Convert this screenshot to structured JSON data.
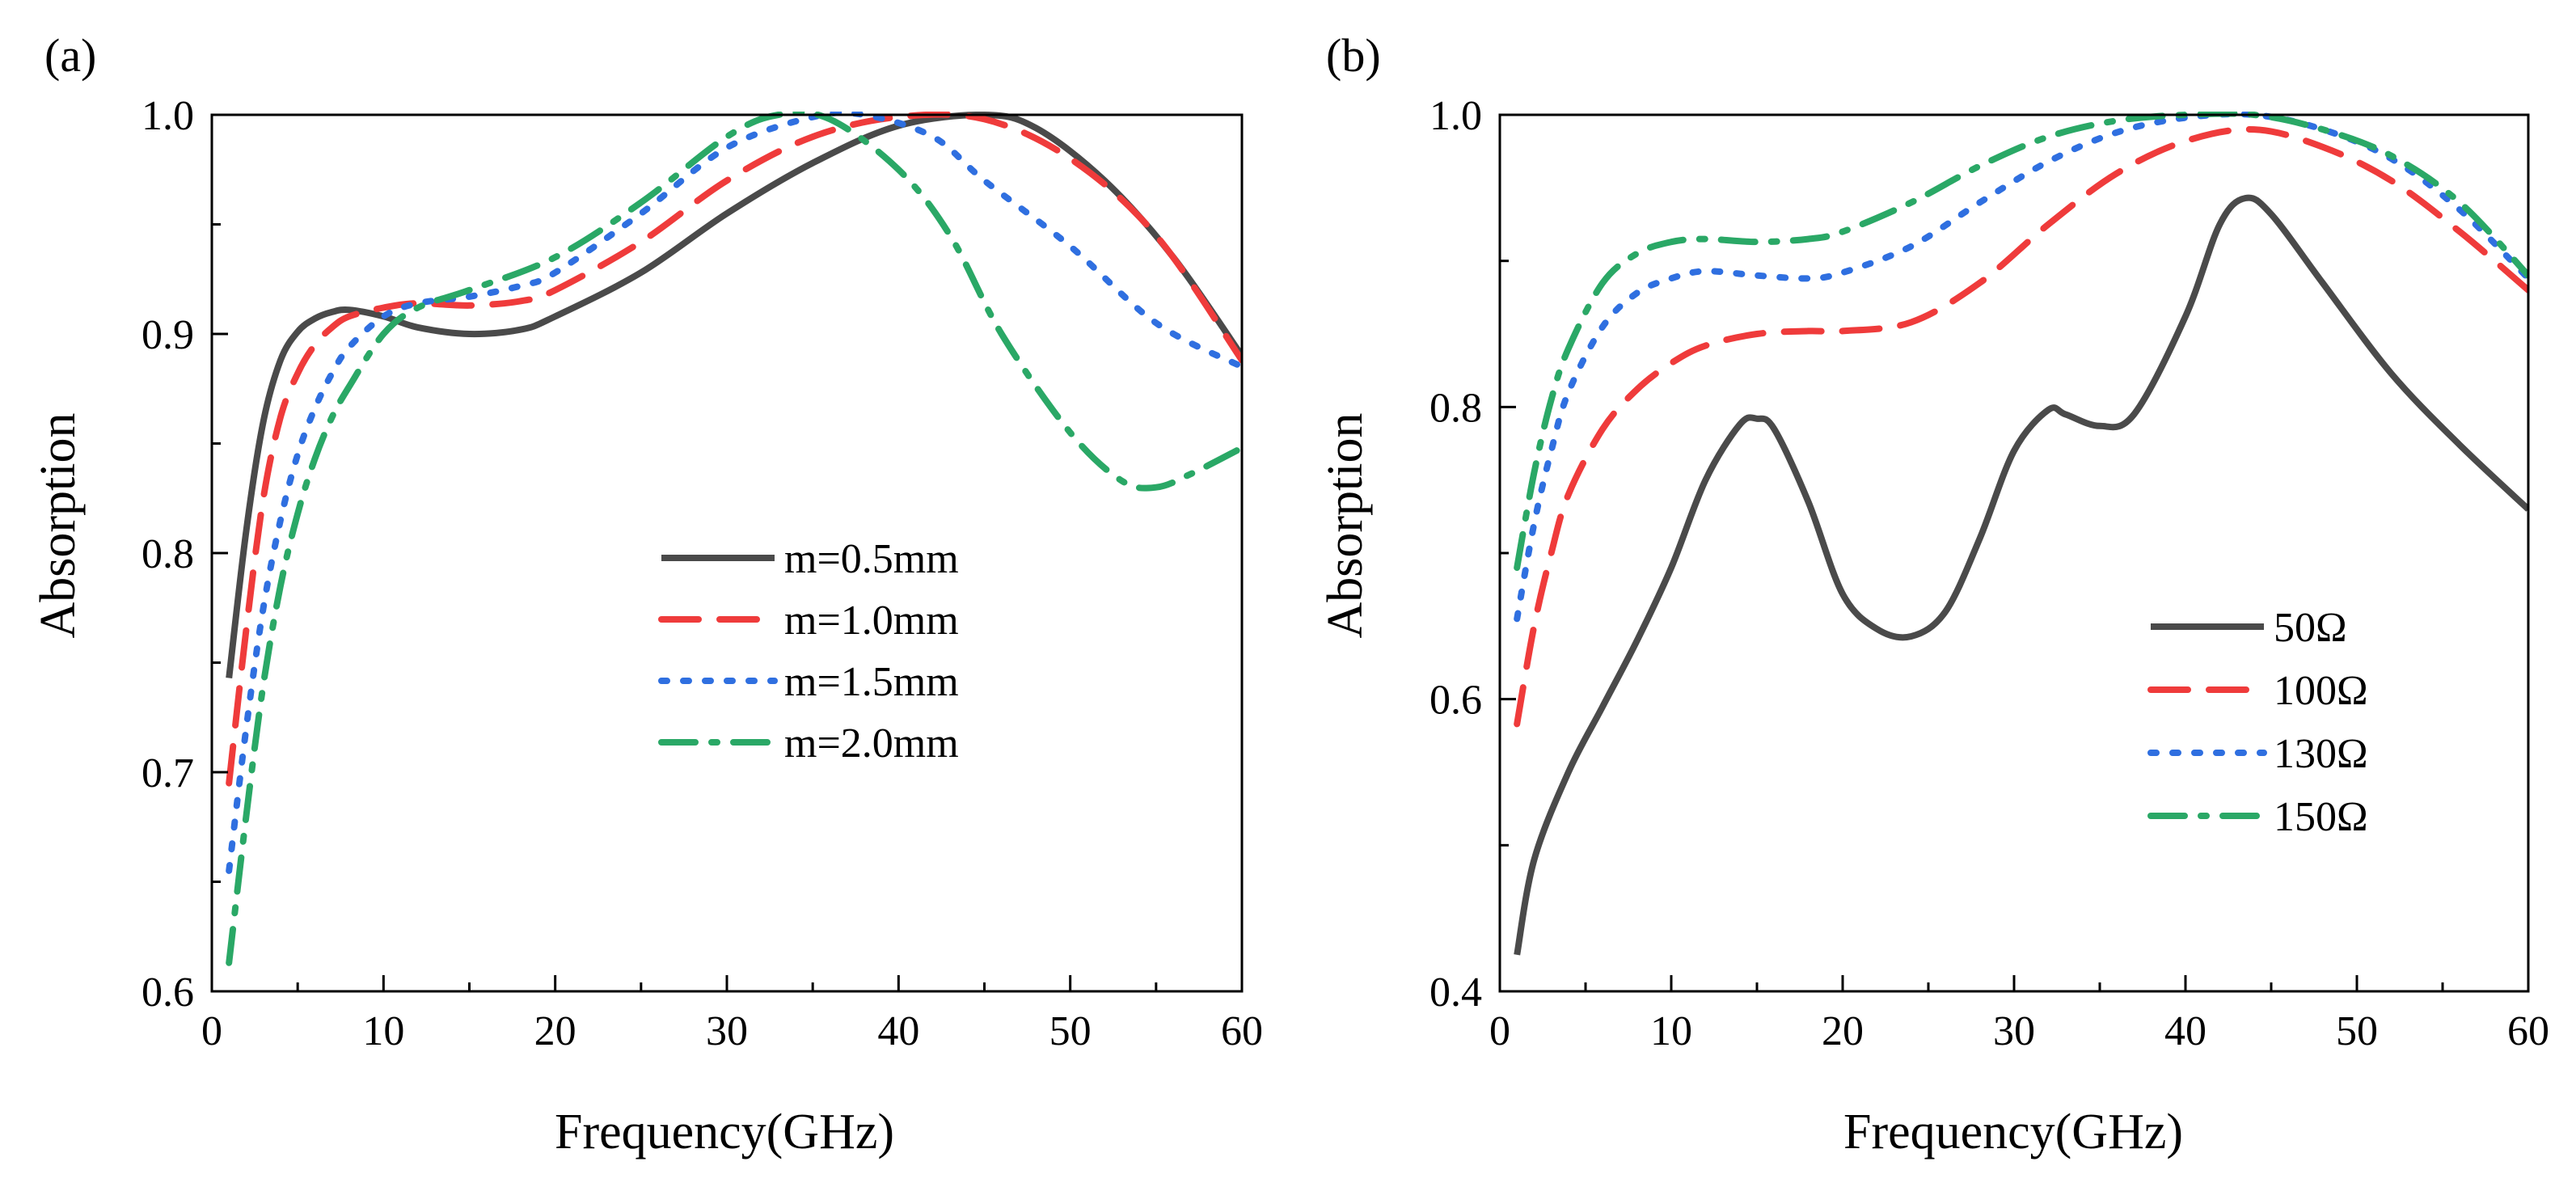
{
  "colors": {
    "series_black": "#4a4a4a",
    "series_red": "#ef3b3b",
    "series_blue": "#2f6fe0",
    "series_green": "#2aa866",
    "axis": "#000000"
  },
  "chart_data": [
    {
      "type": "line",
      "panel_label": "(a)",
      "xlabel": "Frequency(GHz)",
      "ylabel": "Absorption",
      "xlim": [
        0,
        60
      ],
      "ylim": [
        0.6,
        1.0
      ],
      "xticks": [
        0,
        10,
        20,
        30,
        40,
        50,
        60
      ],
      "xtick_labels": [
        "0",
        "10",
        "20",
        "30",
        "40",
        "50",
        "60"
      ],
      "yticks": [
        0.6,
        0.7,
        0.8,
        0.9,
        1.0
      ],
      "ytick_labels": [
        "0.6",
        "0.7",
        "0.8",
        "0.9",
        "1.0"
      ],
      "grid": false,
      "legend_position": "center-right",
      "series": [
        {
          "name": "m=0.5mm",
          "style": "solid",
          "color": "#4a4a4a",
          "x": [
            1,
            2,
            3,
            4,
            5,
            6,
            7,
            8,
            10,
            12,
            15,
            18,
            20,
            25,
            30,
            35,
            40,
            45,
            48,
            52,
            56,
            60
          ],
          "y": [
            0.743,
            0.81,
            0.86,
            0.888,
            0.901,
            0.907,
            0.91,
            0.911,
            0.908,
            0.903,
            0.9,
            0.902,
            0.908,
            0.928,
            0.955,
            0.978,
            0.995,
            1.0,
            0.994,
            0.97,
            0.935,
            0.89
          ]
        },
        {
          "name": "m=1.0mm",
          "style": "dashed",
          "color": "#ef3b3b",
          "x": [
            1,
            2,
            3,
            4,
            5,
            6,
            7,
            8,
            10,
            12,
            15,
            18,
            20,
            25,
            30,
            35,
            40,
            45,
            50,
            55,
            60
          ],
          "y": [
            0.695,
            0.765,
            0.825,
            0.862,
            0.882,
            0.895,
            0.903,
            0.908,
            0.912,
            0.914,
            0.913,
            0.915,
            0.92,
            0.942,
            0.97,
            0.99,
            0.999,
            0.998,
            0.98,
            0.945,
            0.888
          ]
        },
        {
          "name": "m=1.5mm",
          "style": "dotted",
          "color": "#2f6fe0",
          "x": [
            1,
            2,
            3,
            4,
            5,
            6,
            7,
            8,
            10,
            12,
            15,
            18,
            20,
            25,
            30,
            35,
            38,
            42,
            45,
            50,
            55,
            60
          ],
          "y": [
            0.655,
            0.72,
            0.775,
            0.815,
            0.845,
            0.866,
            0.882,
            0.894,
            0.908,
            0.914,
            0.917,
            0.922,
            0.928,
            0.955,
            0.985,
            0.999,
            1.0,
            0.99,
            0.97,
            0.94,
            0.905,
            0.885
          ]
        },
        {
          "name": "m=2.0mm",
          "style": "dashdot",
          "color": "#2aa866",
          "x": [
            1,
            2,
            3,
            4,
            5,
            6,
            7,
            8,
            10,
            12,
            15,
            20,
            25,
            30,
            33,
            36,
            40,
            43,
            46,
            50,
            53,
            55,
            57,
            60
          ],
          "y": [
            0.613,
            0.68,
            0.74,
            0.785,
            0.818,
            0.843,
            0.862,
            0.876,
            0.9,
            0.912,
            0.92,
            0.935,
            0.96,
            0.99,
            1.0,
            0.998,
            0.975,
            0.945,
            0.9,
            0.855,
            0.833,
            0.83,
            0.836,
            0.848
          ]
        }
      ]
    },
    {
      "type": "line",
      "panel_label": "(b)",
      "xlabel": "Frequency(GHz)",
      "ylabel": "Absorption",
      "xlim": [
        0,
        60
      ],
      "ylim": [
        0.4,
        1.0
      ],
      "xticks": [
        0,
        10,
        20,
        30,
        40,
        50,
        60
      ],
      "xtick_labels": [
        "0",
        "10",
        "20",
        "30",
        "40",
        "50",
        "60"
      ],
      "yticks": [
        0.4,
        0.6,
        0.8,
        1.0
      ],
      "ytick_labels": [
        "0.4",
        "0.6",
        "0.8",
        "1.0"
      ],
      "grid": false,
      "legend_position": "center-right",
      "series": [
        {
          "name": "50Ω",
          "style": "solid",
          "color": "#4a4a4a",
          "x": [
            1,
            2,
            4,
            6,
            8,
            10,
            12,
            14,
            15,
            16,
            18,
            20,
            22,
            24,
            26,
            28,
            30,
            32,
            33,
            35,
            37,
            40,
            42,
            43.5,
            45,
            48,
            52,
            56,
            60
          ],
          "y": [
            0.425,
            0.49,
            0.55,
            0.595,
            0.64,
            0.69,
            0.75,
            0.788,
            0.792,
            0.785,
            0.735,
            0.672,
            0.648,
            0.643,
            0.66,
            0.71,
            0.77,
            0.798,
            0.795,
            0.787,
            0.795,
            0.862,
            0.925,
            0.943,
            0.932,
            0.885,
            0.823,
            0.774,
            0.73
          ]
        },
        {
          "name": "100Ω",
          "style": "dashed",
          "color": "#ef3b3b",
          "x": [
            1,
            2,
            3,
            4,
            6,
            8,
            10,
            12,
            15,
            18,
            20,
            24,
            28,
            32,
            36,
            40,
            44,
            48,
            52,
            56,
            60
          ],
          "y": [
            0.583,
            0.65,
            0.7,
            0.74,
            0.785,
            0.812,
            0.83,
            0.842,
            0.85,
            0.852,
            0.852,
            0.858,
            0.885,
            0.925,
            0.96,
            0.982,
            0.99,
            0.978,
            0.955,
            0.92,
            0.88
          ]
        },
        {
          "name": "130Ω",
          "style": "dotted",
          "color": "#2f6fe0",
          "x": [
            1,
            2,
            3,
            4,
            6,
            8,
            10,
            12,
            15,
            18,
            20,
            24,
            28,
            32,
            36,
            40,
            44,
            48,
            52,
            56,
            60
          ],
          "y": [
            0.655,
            0.72,
            0.77,
            0.81,
            0.855,
            0.878,
            0.888,
            0.893,
            0.89,
            0.888,
            0.892,
            0.91,
            0.94,
            0.968,
            0.988,
            0.998,
            1.0,
            0.99,
            0.97,
            0.935,
            0.888
          ]
        },
        {
          "name": "150Ω",
          "style": "dashdot",
          "color": "#2aa866",
          "x": [
            1,
            2,
            3,
            4,
            6,
            8,
            10,
            12,
            15,
            18,
            20,
            24,
            28,
            32,
            36,
            40,
            44,
            48,
            52,
            56,
            60
          ],
          "y": [
            0.69,
            0.755,
            0.805,
            0.84,
            0.885,
            0.905,
            0.913,
            0.915,
            0.913,
            0.915,
            0.92,
            0.94,
            0.965,
            0.985,
            0.996,
            1.0,
            1.0,
            0.99,
            0.972,
            0.94,
            0.89
          ]
        }
      ]
    }
  ]
}
